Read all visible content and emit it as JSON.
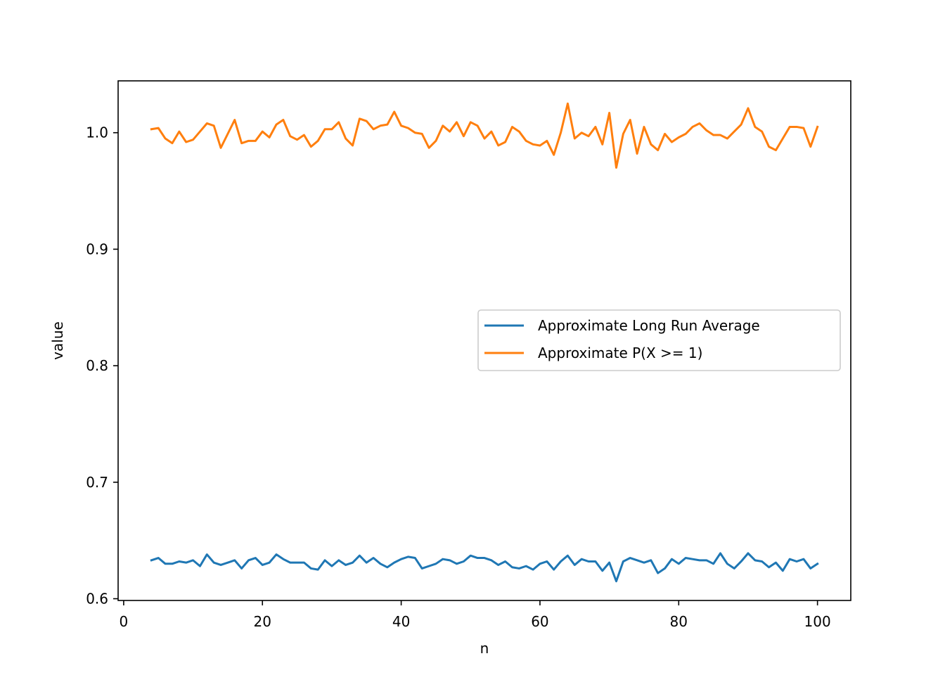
{
  "chart_data": {
    "type": "line",
    "title": "",
    "xlabel": "n",
    "ylabel": "value",
    "xlim": [
      -0.8,
      104.8
    ],
    "ylim": [
      0.5985,
      1.0445
    ],
    "xticks": [
      0,
      20,
      40,
      60,
      80,
      100
    ],
    "yticks": [
      0.6,
      0.7,
      0.8,
      0.9,
      1.0
    ],
    "ytick_labels": [
      "0.6",
      "0.7",
      "0.8",
      "0.9",
      "1.0"
    ],
    "grid": false,
    "legend_position": "center-right",
    "x": [
      4,
      5,
      6,
      7,
      8,
      9,
      10,
      11,
      12,
      13,
      14,
      15,
      16,
      17,
      18,
      19,
      20,
      21,
      22,
      23,
      24,
      25,
      26,
      27,
      28,
      29,
      30,
      31,
      32,
      33,
      34,
      35,
      36,
      37,
      38,
      39,
      40,
      41,
      42,
      43,
      44,
      45,
      46,
      47,
      48,
      49,
      50,
      51,
      52,
      53,
      54,
      55,
      56,
      57,
      58,
      59,
      60,
      61,
      62,
      63,
      64,
      65,
      66,
      67,
      68,
      69,
      70,
      71,
      72,
      73,
      74,
      75,
      76,
      77,
      78,
      79,
      80,
      81,
      82,
      83,
      84,
      85,
      86,
      87,
      88,
      89,
      90,
      91,
      92,
      93,
      94,
      95,
      96,
      97,
      98,
      99,
      100
    ],
    "series": [
      {
        "name": "Approximate Long Run Average",
        "color": "#1f77b4",
        "values": [
          0.633,
          0.635,
          0.63,
          0.63,
          0.632,
          0.631,
          0.633,
          0.628,
          0.638,
          0.631,
          0.629,
          0.631,
          0.633,
          0.626,
          0.633,
          0.635,
          0.629,
          0.631,
          0.638,
          0.634,
          0.631,
          0.631,
          0.631,
          0.626,
          0.625,
          0.633,
          0.628,
          0.633,
          0.629,
          0.631,
          0.637,
          0.631,
          0.635,
          0.63,
          0.627,
          0.631,
          0.634,
          0.636,
          0.635,
          0.626,
          0.628,
          0.63,
          0.634,
          0.633,
          0.63,
          0.632,
          0.637,
          0.635,
          0.635,
          0.633,
          0.629,
          0.632,
          0.627,
          0.626,
          0.628,
          0.625,
          0.63,
          0.632,
          0.625,
          0.632,
          0.637,
          0.629,
          0.634,
          0.632,
          0.632,
          0.624,
          0.631,
          0.615,
          0.632,
          0.635,
          0.633,
          0.631,
          0.633,
          0.622,
          0.626,
          0.634,
          0.63,
          0.635,
          0.634,
          0.633,
          0.633,
          0.63,
          0.639,
          0.63,
          0.626,
          0.632,
          0.639,
          0.633,
          0.632,
          0.627,
          0.631,
          0.624,
          0.634,
          0.632,
          0.634,
          0.626,
          0.63
        ]
      },
      {
        "name": "Approximate P(X >= 1)",
        "color": "#ff7f0e",
        "values": [
          1.003,
          1.004,
          0.995,
          0.991,
          1.001,
          0.992,
          0.994,
          1.001,
          1.008,
          1.006,
          0.987,
          0.999,
          1.011,
          0.991,
          0.993,
          0.993,
          1.001,
          0.996,
          1.007,
          1.011,
          0.997,
          0.994,
          0.998,
          0.988,
          0.993,
          1.003,
          1.003,
          1.009,
          0.995,
          0.989,
          1.012,
          1.01,
          1.003,
          1.006,
          1.007,
          1.018,
          1.006,
          1.004,
          1.0,
          0.999,
          0.987,
          0.993,
          1.006,
          1.001,
          1.009,
          0.997,
          1.009,
          1.006,
          0.995,
          1.001,
          0.989,
          0.992,
          1.005,
          1.001,
          0.993,
          0.99,
          0.989,
          0.993,
          0.981,
          1.0,
          1.025,
          0.995,
          1.0,
          0.997,
          1.005,
          0.99,
          1.017,
          0.97,
          0.999,
          1.011,
          0.982,
          1.005,
          0.99,
          0.985,
          0.999,
          0.992,
          0.996,
          0.999,
          1.005,
          1.008,
          1.002,
          0.998,
          0.998,
          0.995,
          1.001,
          1.007,
          1.021,
          1.005,
          1.001,
          0.988,
          0.985,
          0.995,
          1.005,
          1.005,
          1.004,
          0.988,
          1.005
        ]
      }
    ]
  }
}
